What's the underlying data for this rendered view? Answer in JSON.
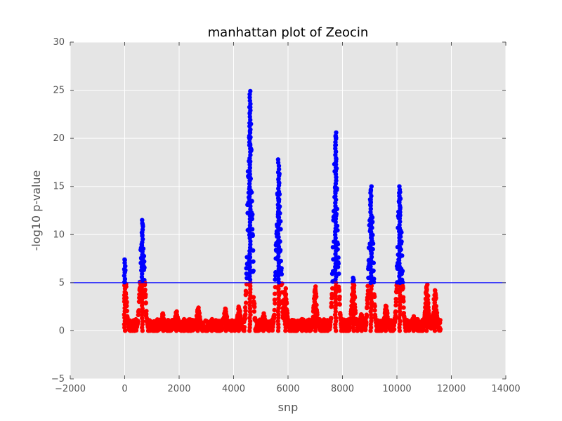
{
  "chart_data": {
    "type": "scatter",
    "title": "manhattan plot of Zeocin",
    "xlabel": "snp",
    "ylabel": "-log10 p-value",
    "xlim": [
      -2000,
      14000
    ],
    "ylim": [
      -5,
      30
    ],
    "xticks": [
      -2000,
      0,
      2000,
      4000,
      6000,
      8000,
      10000,
      12000,
      14000
    ],
    "yticks": [
      -5,
      0,
      5,
      10,
      15,
      20,
      25,
      30
    ],
    "grid": true,
    "threshold": 5,
    "colors": {
      "above_threshold": "#0000ff",
      "below_threshold": "#ff0000",
      "threshold_line": "#0000ff",
      "plot_background": "#e5e5e5",
      "grid": "#ffffff"
    },
    "peaks": [
      {
        "x": 0,
        "max": 7.4
      },
      {
        "x": 650,
        "max": 11.5
      },
      {
        "x": 4600,
        "max": 24.9
      },
      {
        "x": 5650,
        "max": 17.8
      },
      {
        "x": 7750,
        "max": 20.6
      },
      {
        "x": 9050,
        "max": 15.0
      },
      {
        "x": 10100,
        "max": 15.0
      },
      {
        "x": 8400,
        "max": 5.5
      },
      {
        "x": 11100,
        "max": 4.8
      },
      {
        "x": 11400,
        "max": 4.2
      },
      {
        "x": 7000,
        "max": 4.6
      },
      {
        "x": 5900,
        "max": 4.4
      },
      {
        "x": 3700,
        "max": 2.3
      },
      {
        "x": 4200,
        "max": 2.5
      },
      {
        "x": 2700,
        "max": 2.4
      },
      {
        "x": 1400,
        "max": 1.8
      },
      {
        "x": 1900,
        "max": 2.0
      },
      {
        "x": 3200,
        "max": 1.2
      },
      {
        "x": 5100,
        "max": 1.8
      },
      {
        "x": 6500,
        "max": 1.2
      },
      {
        "x": 8700,
        "max": 1.7
      },
      {
        "x": 9600,
        "max": 2.6
      },
      {
        "x": 10600,
        "max": 1.5
      }
    ],
    "snp_range": [
      0,
      11600
    ]
  }
}
